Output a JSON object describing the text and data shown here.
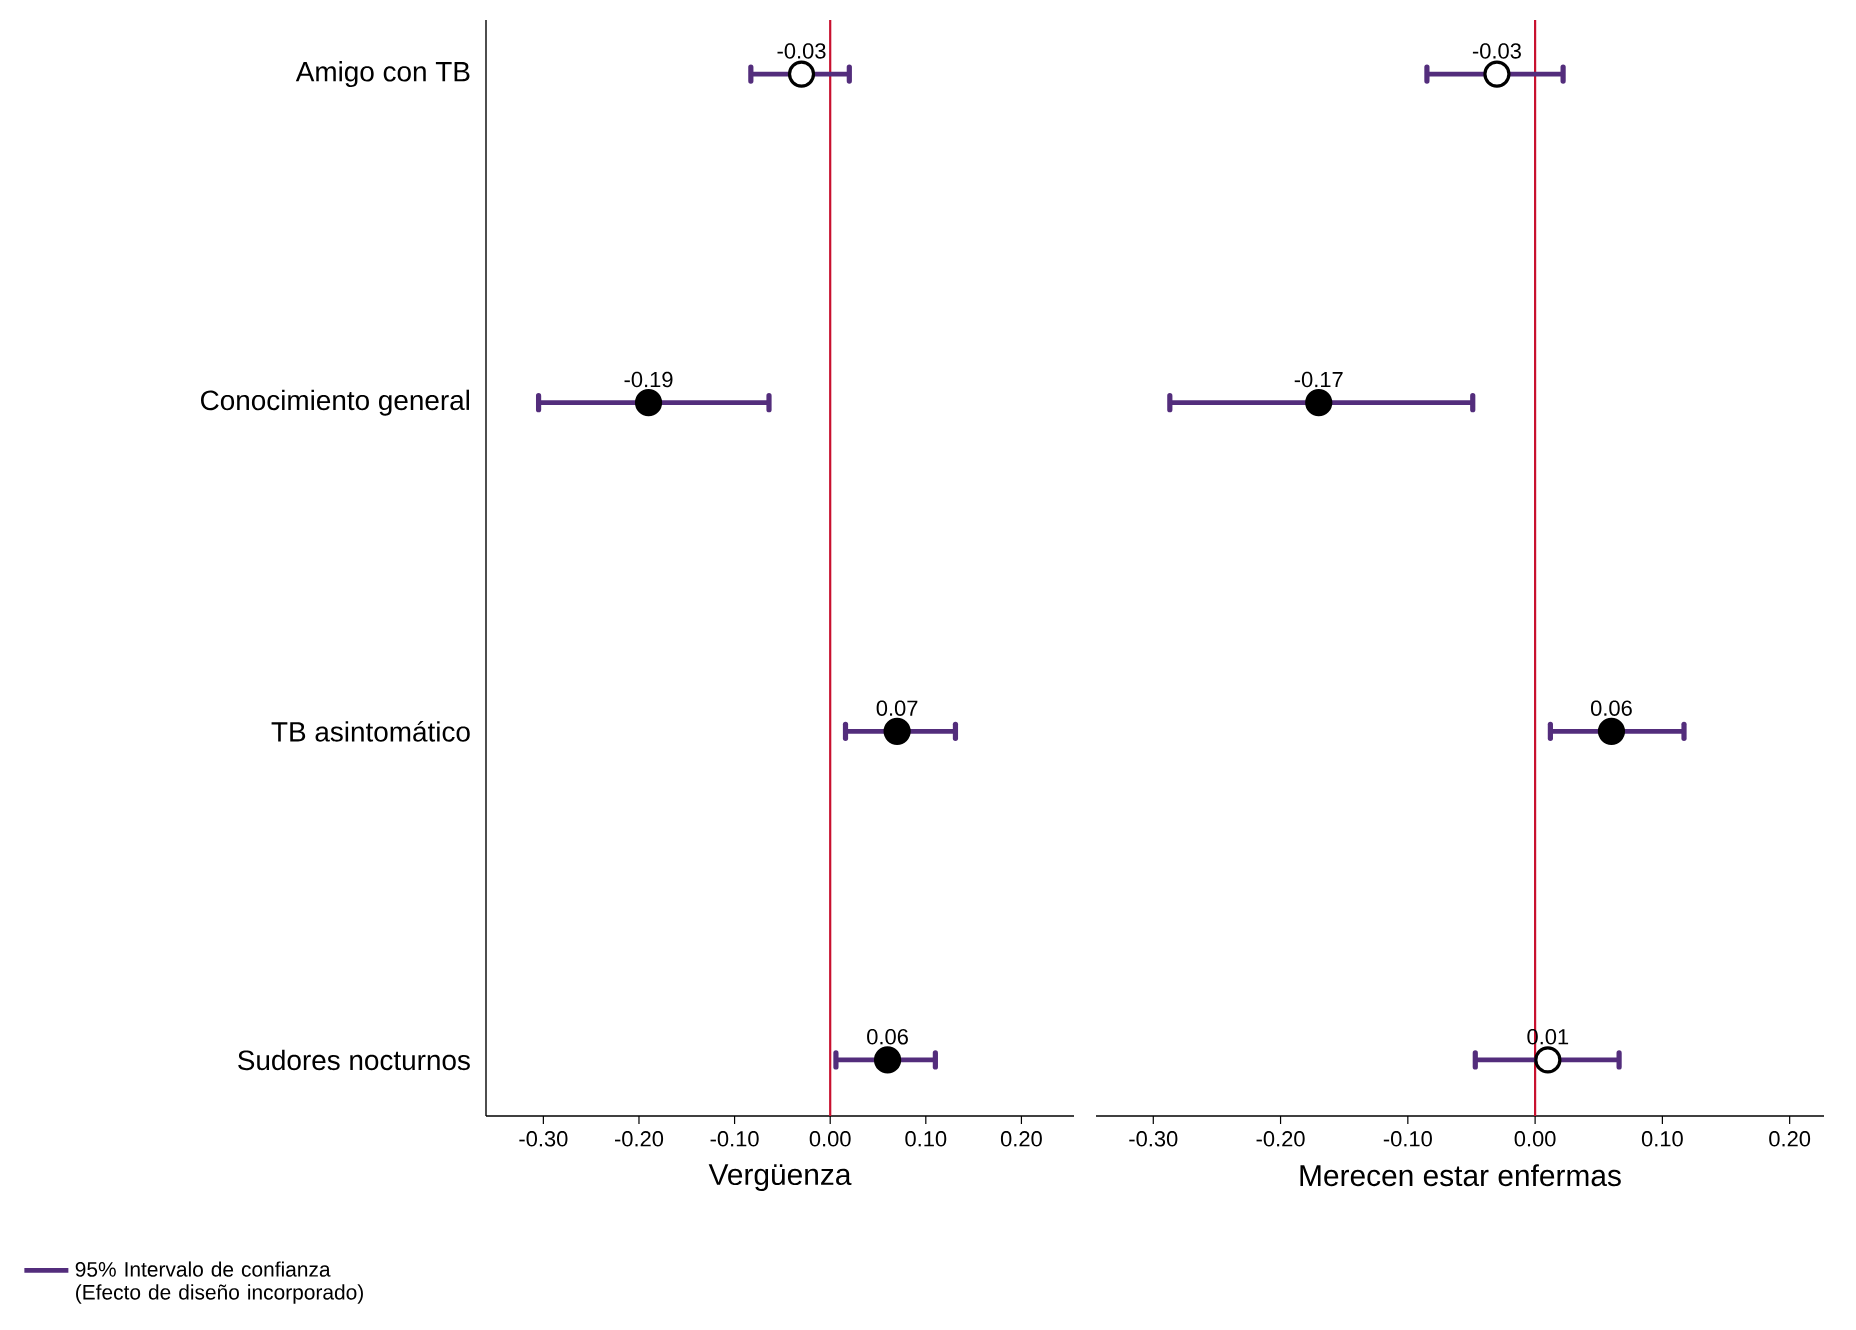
{
  "chart_data": [
    {
      "type": "scatter",
      "orientation": "horizontal",
      "xlabel": "Vergüenza",
      "categories": [
        "Amigo con TB",
        "Conocimiento general",
        "TB asintomático",
        "Sudores nocturnos"
      ],
      "series": [
        {
          "name": "95% Intervalo de confianza (Efecto de diseño incorporado)",
          "color": "#532d7c",
          "colors": [
            "#ffffff",
            "#000000",
            "#000000",
            "#000000"
          ],
          "values": [
            -0.03,
            -0.19,
            0.07,
            0.06
          ],
          "errors": [
            [
              -0.083,
              0.02
            ],
            [
              -0.305,
              -0.064
            ],
            [
              0.016,
              0.131
            ],
            [
              0.006,
              0.11
            ]
          ]
        }
      ],
      "xlim": [
        -0.36,
        0.255
      ],
      "xticks": [
        {
          "value": -0.3,
          "label": "-0.30"
        },
        {
          "value": -0.2,
          "label": "-0.20"
        },
        {
          "value": -0.1,
          "label": "-0.10"
        },
        {
          "value": 0,
          "label": "0.00"
        },
        {
          "value": 0.1,
          "label": "0.10"
        },
        {
          "value": 0.2,
          "label": "0.20"
        }
      ],
      "ref_lines": [
        {
          "axis": "x",
          "value": 0,
          "color": "#c8102e"
        }
      ],
      "marker": "circle",
      "data_labels": true,
      "legend": "bottom left"
    },
    {
      "type": "scatter",
      "orientation": "horizontal",
      "xlabel": "Merecen estar enfermas",
      "categories": [
        null,
        null,
        null,
        null
      ],
      "series": [
        {
          "color": "#532d7c",
          "colors": [
            "#ffffff",
            "#000000",
            "#000000",
            "#ffffff"
          ],
          "values": [
            -0.03,
            -0.17,
            0.06,
            0.01
          ],
          "errors": [
            [
              -0.085,
              0.022
            ],
            [
              -0.287,
              -0.049
            ],
            [
              0.012,
              0.117
            ],
            [
              -0.047,
              0.066
            ]
          ]
        }
      ],
      "xlim": [
        -0.345,
        0.227
      ],
      "xticks": [
        {
          "value": -0.3,
          "label": "-0.30"
        },
        {
          "value": -0.2,
          "label": "-0.20"
        },
        {
          "value": -0.1,
          "label": "-0.10"
        },
        {
          "value": 0,
          "label": "0.00"
        },
        {
          "value": 0.1,
          "label": "0.10"
        },
        {
          "value": 0.2,
          "label": "0.20"
        }
      ],
      "ref_lines": [
        {
          "axis": "x",
          "value": 0,
          "color": "#c8102e"
        }
      ],
      "marker": "circle",
      "data_labels": true,
      "tick_labels": "x"
    }
  ]
}
